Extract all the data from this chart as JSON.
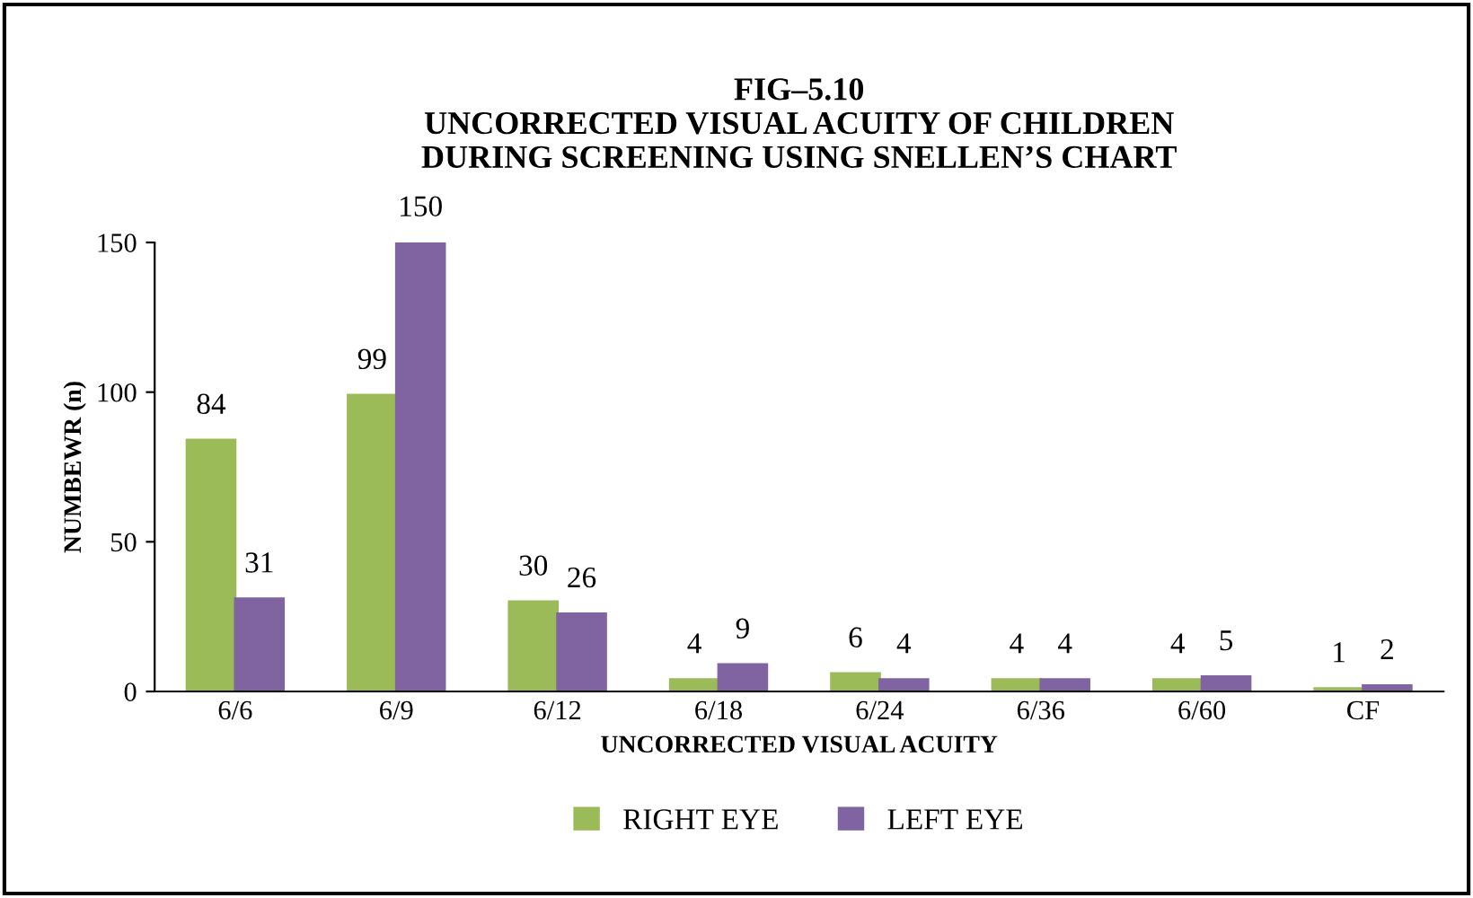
{
  "chart_data": {
    "type": "bar",
    "title": "FIG–5.10\nUNCORRECTED VISUAL ACUITY OF CHILDREN\nDURING SCREENING USING SNELLEN’S CHART",
    "xlabel": "UNCORRECTED VISUAL ACUITY",
    "ylabel": "NUMBEWR (n)",
    "categories": [
      "6/6",
      "6/9",
      "6/12",
      "6/18",
      "6/24",
      "6/36",
      "6/60",
      "CF"
    ],
    "series": [
      {
        "name": "RIGHT EYE",
        "color": "#9bbb59",
        "values": [
          84,
          99,
          30,
          4,
          6,
          4,
          4,
          1
        ]
      },
      {
        "name": "LEFT EYE",
        "color": "#8064a2",
        "values": [
          31,
          150,
          26,
          9,
          4,
          4,
          5,
          2
        ]
      }
    ],
    "ylim": [
      0,
      150
    ],
    "yticks": [
      0,
      50,
      100,
      150
    ],
    "grid": false,
    "legend": "bottom",
    "data_labels": true
  }
}
